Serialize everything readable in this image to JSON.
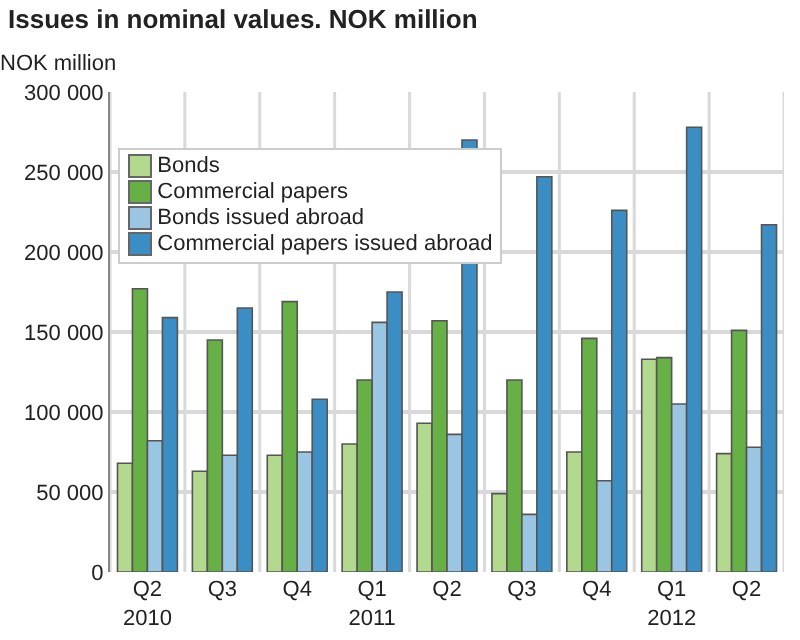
{
  "chart_data": {
    "type": "bar",
    "title": "Issues in nominal values. NOK million",
    "ylabel": "NOK million",
    "categories": [
      "Q2\n2010",
      "Q3",
      "Q4",
      "Q1\n2011",
      "Q2",
      "Q3",
      "Q4",
      "Q1\n2012",
      "Q2"
    ],
    "series": [
      {
        "name": "Bonds",
        "color": "#b3d98e",
        "values": [
          68000,
          63000,
          73000,
          80000,
          93000,
          49000,
          75000,
          133000,
          74000
        ]
      },
      {
        "name": "Commercial papers",
        "color": "#66b045",
        "values": [
          177000,
          145000,
          169000,
          120000,
          157000,
          120000,
          146000,
          134000,
          151000
        ]
      },
      {
        "name": "Bonds issued abroad",
        "color": "#9ac6e3",
        "values": [
          82000,
          73000,
          75000,
          156000,
          86000,
          36000,
          57000,
          105000,
          78000
        ]
      },
      {
        "name": "Commercial papers issued abroad",
        "color": "#3a8ec4",
        "values": [
          159000,
          165000,
          108000,
          175000,
          270000,
          247000,
          226000,
          278000,
          217000
        ]
      }
    ],
    "ylim": [
      0,
      300000
    ],
    "yticks": [
      0,
      {
        "value": 50000,
        "label": "50 000"
      },
      {
        "value": 100000,
        "label": "100 000"
      },
      {
        "value": 150000,
        "label": "150 000"
      },
      {
        "value": 200000,
        "label": "200 000"
      },
      {
        "value": 250000,
        "label": "250 000"
      },
      {
        "value": 300000,
        "label": "300 000"
      }
    ],
    "grid": true,
    "legend": "top left"
  }
}
